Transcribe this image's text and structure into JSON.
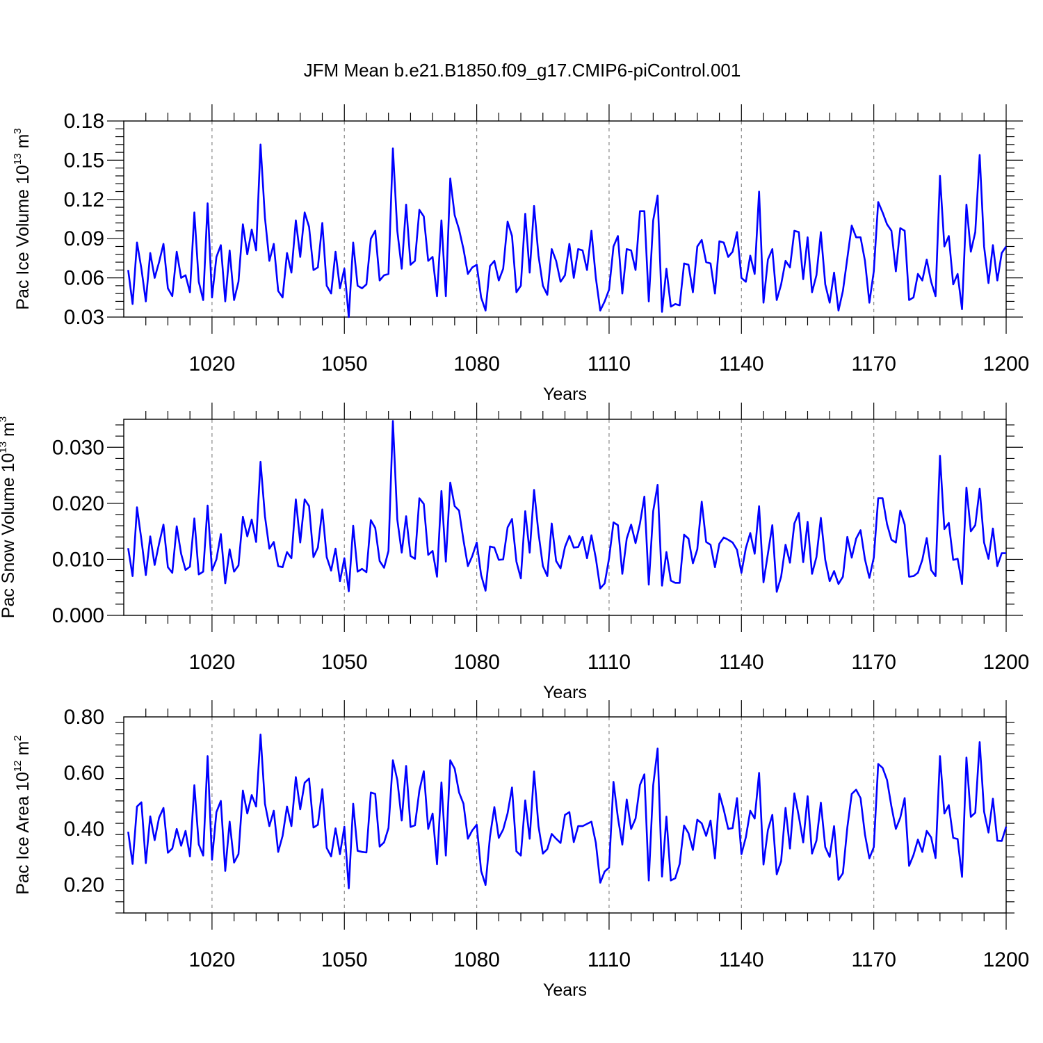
{
  "figure": {
    "title": "JFM Mean b.e21.B1850.f09_g17.CMIP6-piControl.001",
    "line_color": "#0000ff",
    "grid_color": "#888888"
  },
  "chart_data": [
    {
      "type": "line",
      "title": "",
      "xlabel": "Years",
      "ylabel": "Pac Ice Volume 10",
      "ylabel_power": "13",
      "ylabel_unit": " m",
      "ylabel_unit_power": "3",
      "xlim": [
        1000,
        1200
      ],
      "ylim": [
        0.03,
        0.18
      ],
      "x_ticks": [
        1020,
        1050,
        1080,
        1110,
        1140,
        1170,
        1200
      ],
      "x_tick_labels": [
        "1020",
        "1050",
        "1080",
        "1110",
        "1140",
        "1170",
        "1200"
      ],
      "y_ticks": [
        0.03,
        0.06,
        0.09,
        0.12,
        0.15,
        0.18
      ],
      "y_tick_labels": [
        "0.03",
        "0.06",
        "0.09",
        "0.12",
        "0.15",
        "0.18"
      ],
      "x_start": 1001,
      "series": [
        {
          "name": "Pac Ice Volume",
          "values": [
            0.066,
            0.04,
            0.087,
            0.067,
            0.042,
            0.079,
            0.06,
            0.072,
            0.086,
            0.052,
            0.046,
            0.08,
            0.06,
            0.062,
            0.049,
            0.11,
            0.057,
            0.043,
            0.117,
            0.045,
            0.076,
            0.085,
            0.042,
            0.081,
            0.043,
            0.057,
            0.101,
            0.078,
            0.097,
            0.081,
            0.162,
            0.106,
            0.073,
            0.086,
            0.05,
            0.045,
            0.079,
            0.064,
            0.104,
            0.076,
            0.11,
            0.099,
            0.066,
            0.068,
            0.102,
            0.054,
            0.048,
            0.08,
            0.052,
            0.067,
            0.03,
            0.087,
            0.054,
            0.052,
            0.055,
            0.09,
            0.096,
            0.058,
            0.062,
            0.063,
            0.159,
            0.096,
            0.067,
            0.116,
            0.07,
            0.073,
            0.112,
            0.107,
            0.073,
            0.076,
            0.046,
            0.104,
            0.046,
            0.136,
            0.108,
            0.097,
            0.082,
            0.063,
            0.068,
            0.07,
            0.045,
            0.035,
            0.069,
            0.073,
            0.058,
            0.067,
            0.103,
            0.092,
            0.049,
            0.054,
            0.109,
            0.064,
            0.115,
            0.077,
            0.054,
            0.047,
            0.082,
            0.073,
            0.057,
            0.062,
            0.086,
            0.06,
            0.082,
            0.081,
            0.066,
            0.096,
            0.06,
            0.035,
            0.042,
            0.051,
            0.084,
            0.092,
            0.048,
            0.082,
            0.081,
            0.066,
            0.111,
            0.111,
            0.042,
            0.104,
            0.123,
            0.034,
            0.067,
            0.038,
            0.04,
            0.039,
            0.071,
            0.07,
            0.049,
            0.084,
            0.089,
            0.072,
            0.071,
            0.048,
            0.088,
            0.087,
            0.076,
            0.08,
            0.095,
            0.06,
            0.057,
            0.077,
            0.063,
            0.126,
            0.041,
            0.074,
            0.082,
            0.043,
            0.055,
            0.073,
            0.068,
            0.096,
            0.095,
            0.059,
            0.091,
            0.049,
            0.062,
            0.095,
            0.055,
            0.041,
            0.064,
            0.035,
            0.05,
            0.075,
            0.1,
            0.091,
            0.091,
            0.073,
            0.041,
            0.065,
            0.118,
            0.11,
            0.101,
            0.096,
            0.065,
            0.098,
            0.096,
            0.043,
            0.045,
            0.063,
            0.058,
            0.074,
            0.057,
            0.046,
            0.138,
            0.084,
            0.092,
            0.055,
            0.063,
            0.036,
            0.116,
            0.08,
            0.095,
            0.154,
            0.084,
            0.056,
            0.085,
            0.058,
            0.079,
            0.084
          ]
        }
      ]
    },
    {
      "type": "line",
      "title": "",
      "xlabel": "Years",
      "ylabel": "Pac Snow Volume 10",
      "ylabel_power": "13",
      "ylabel_unit": " m",
      "ylabel_unit_power": "3",
      "xlim": [
        1000,
        1200
      ],
      "ylim": [
        0.0,
        0.035
      ],
      "x_ticks": [
        1020,
        1050,
        1080,
        1110,
        1140,
        1170,
        1200
      ],
      "x_tick_labels": [
        "1020",
        "1050",
        "1080",
        "1110",
        "1140",
        "1170",
        "1200"
      ],
      "y_ticks": [
        0.0,
        0.01,
        0.02,
        0.03
      ],
      "y_tick_labels": [
        "0.000",
        "0.010",
        "0.020",
        "0.030"
      ],
      "x_start": 1001,
      "series": [
        {
          "name": "Pac Snow Volume",
          "values": [
            0.012,
            0.007,
            0.0193,
            0.0135,
            0.0072,
            0.0141,
            0.009,
            0.0128,
            0.0162,
            0.0086,
            0.0076,
            0.0159,
            0.011,
            0.0081,
            0.0087,
            0.0173,
            0.0073,
            0.0078,
            0.0196,
            0.008,
            0.01,
            0.0145,
            0.0057,
            0.0118,
            0.0078,
            0.0089,
            0.0176,
            0.0141,
            0.0171,
            0.0131,
            0.0274,
            0.0177,
            0.0119,
            0.0131,
            0.0088,
            0.0086,
            0.0113,
            0.0102,
            0.0207,
            0.013,
            0.0207,
            0.0195,
            0.0104,
            0.0121,
            0.0189,
            0.0104,
            0.008,
            0.0119,
            0.0061,
            0.0102,
            0.0043,
            0.016,
            0.0078,
            0.0083,
            0.0077,
            0.017,
            0.0156,
            0.0097,
            0.0085,
            0.0115,
            0.0347,
            0.0171,
            0.0112,
            0.0177,
            0.0106,
            0.0101,
            0.0209,
            0.0199,
            0.0108,
            0.0115,
            0.0069,
            0.0222,
            0.0096,
            0.0237,
            0.0195,
            0.0187,
            0.0134,
            0.0088,
            0.0106,
            0.013,
            0.0072,
            0.0044,
            0.0123,
            0.0121,
            0.0099,
            0.01,
            0.0157,
            0.0172,
            0.0096,
            0.0066,
            0.0186,
            0.0112,
            0.0224,
            0.0147,
            0.0088,
            0.007,
            0.0164,
            0.0097,
            0.0084,
            0.0122,
            0.0142,
            0.0121,
            0.0122,
            0.014,
            0.0102,
            0.0143,
            0.0102,
            0.0048,
            0.0057,
            0.0102,
            0.0166,
            0.0161,
            0.0074,
            0.0137,
            0.0162,
            0.0129,
            0.0164,
            0.0212,
            0.0055,
            0.0186,
            0.0233,
            0.0053,
            0.0113,
            0.0062,
            0.0058,
            0.0058,
            0.0144,
            0.0137,
            0.0093,
            0.0118,
            0.0203,
            0.0131,
            0.0126,
            0.0086,
            0.0128,
            0.0139,
            0.0135,
            0.013,
            0.0117,
            0.0076,
            0.012,
            0.0147,
            0.011,
            0.0195,
            0.0059,
            0.011,
            0.0161,
            0.0042,
            0.0069,
            0.0126,
            0.0094,
            0.0164,
            0.0183,
            0.0095,
            0.0167,
            0.0074,
            0.0104,
            0.0174,
            0.0099,
            0.0061,
            0.0079,
            0.0056,
            0.0069,
            0.014,
            0.0103,
            0.0137,
            0.0152,
            0.01,
            0.0067,
            0.0103,
            0.0209,
            0.0209,
            0.0163,
            0.0135,
            0.013,
            0.0187,
            0.0162,
            0.0069,
            0.007,
            0.0076,
            0.0099,
            0.0138,
            0.0081,
            0.007,
            0.0285,
            0.0154,
            0.0165,
            0.0099,
            0.0101,
            0.0056,
            0.0228,
            0.015,
            0.0161,
            0.0226,
            0.013,
            0.0101,
            0.0155,
            0.0088,
            0.0111,
            0.0111
          ]
        }
      ]
    },
    {
      "type": "line",
      "title": "",
      "xlabel": "Years",
      "ylabel": "Pac Ice Area 10",
      "ylabel_power": "12",
      "ylabel_unit": " m",
      "ylabel_unit_power": "2",
      "xlim": [
        1000,
        1200
      ],
      "ylim": [
        0.1,
        0.8
      ],
      "x_ticks": [
        1020,
        1050,
        1080,
        1110,
        1140,
        1170,
        1200
      ],
      "x_tick_labels": [
        "1020",
        "1050",
        "1080",
        "1110",
        "1140",
        "1170",
        "1200"
      ],
      "y_ticks": [
        0.2,
        0.4,
        0.6,
        0.8
      ],
      "y_tick_labels": [
        "0.20",
        "0.40",
        "0.60",
        "0.80"
      ],
      "x_start": 1001,
      "series": [
        {
          "name": "Pac Ice Area",
          "values": [
            0.39,
            0.275,
            0.48,
            0.495,
            0.278,
            0.445,
            0.36,
            0.44,
            0.475,
            0.315,
            0.33,
            0.4,
            0.34,
            0.393,
            0.302,
            0.556,
            0.345,
            0.305,
            0.66,
            0.29,
            0.46,
            0.5,
            0.25,
            0.426,
            0.28,
            0.31,
            0.537,
            0.455,
            0.521,
            0.48,
            0.737,
            0.49,
            0.41,
            0.465,
            0.318,
            0.375,
            0.48,
            0.41,
            0.585,
            0.47,
            0.565,
            0.58,
            0.405,
            0.415,
            0.542,
            0.332,
            0.302,
            0.402,
            0.31,
            0.408,
            0.188,
            0.49,
            0.322,
            0.318,
            0.316,
            0.53,
            0.525,
            0.337,
            0.352,
            0.403,
            0.645,
            0.575,
            0.43,
            0.625,
            0.407,
            0.413,
            0.537,
            0.606,
            0.4,
            0.455,
            0.274,
            0.566,
            0.305,
            0.645,
            0.615,
            0.53,
            0.49,
            0.365,
            0.395,
            0.415,
            0.25,
            0.2,
            0.372,
            0.478,
            0.368,
            0.398,
            0.456,
            0.548,
            0.32,
            0.305,
            0.502,
            0.365,
            0.605,
            0.41,
            0.312,
            0.328,
            0.382,
            0.365,
            0.35,
            0.45,
            0.46,
            0.353,
            0.41,
            0.41,
            0.418,
            0.426,
            0.35,
            0.208,
            0.248,
            0.262,
            0.568,
            0.44,
            0.344,
            0.505,
            0.4,
            0.437,
            0.557,
            0.595,
            0.216,
            0.556,
            0.687,
            0.23,
            0.444,
            0.216,
            0.224,
            0.275,
            0.412,
            0.385,
            0.325,
            0.433,
            0.42,
            0.375,
            0.43,
            0.295,
            0.526,
            0.468,
            0.4,
            0.403,
            0.51,
            0.31,
            0.37,
            0.465,
            0.437,
            0.6,
            0.273,
            0.396,
            0.45,
            0.238,
            0.285,
            0.475,
            0.33,
            0.527,
            0.446,
            0.352,
            0.517,
            0.312,
            0.358,
            0.494,
            0.335,
            0.3,
            0.41,
            0.218,
            0.242,
            0.405,
            0.525,
            0.54,
            0.51,
            0.38,
            0.295,
            0.335,
            0.632,
            0.618,
            0.575,
            0.48,
            0.4,
            0.44,
            0.51,
            0.268,
            0.307,
            0.362,
            0.318,
            0.393,
            0.37,
            0.296,
            0.66,
            0.455,
            0.485,
            0.368,
            0.364,
            0.229,
            0.655,
            0.443,
            0.458,
            0.71,
            0.462,
            0.387,
            0.508,
            0.358,
            0.357,
            0.408
          ]
        }
      ]
    }
  ]
}
